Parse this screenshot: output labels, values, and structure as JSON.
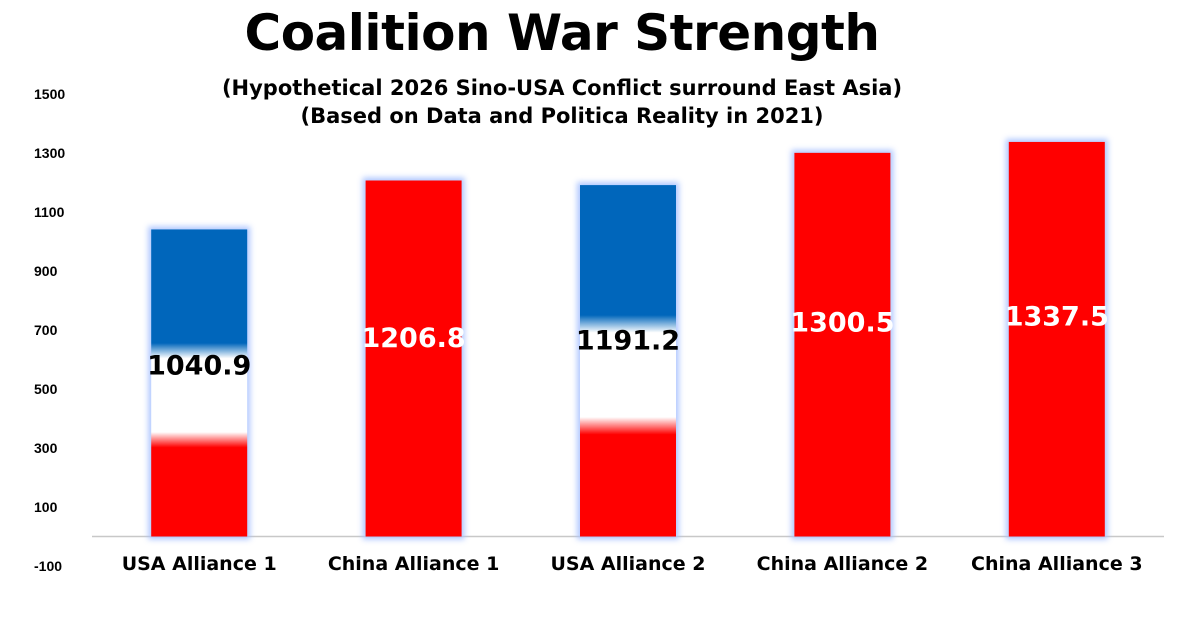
{
  "chart_data": {
    "type": "bar",
    "title": "Coalition War Strength",
    "subtitles": [
      "(Hypothetical 2026 Sino-USA Conflict surround East Asia)",
      "(Based on Data and Politica Reality in 2021)"
    ],
    "categories": [
      "USA Alliance 1",
      "China Alliance 1",
      "USA Alliance 2",
      "China Alliance 2",
      "China Alliance 3"
    ],
    "values": [
      1040.9,
      1206.8,
      1191.2,
      1300.5,
      1337.5
    ],
    "data_labels": [
      "1040.9",
      "1206.8",
      "1191.2",
      "1300.5",
      "1337.5"
    ],
    "bar_styles": [
      "tricolor",
      "red",
      "tricolor",
      "red",
      "red"
    ],
    "y_ticks": [
      "-100",
      "100",
      "300",
      "500",
      "700",
      "900",
      "1100",
      "1300",
      "1500"
    ],
    "ylim": [
      -100,
      1500
    ],
    "grid": false,
    "legend": "none",
    "colors": {
      "red": "#ff0000",
      "blue": "#0066bb",
      "white": "#ffffff",
      "bar_glow": "#a9c2ff",
      "axis": "#c8c8c8"
    }
  }
}
